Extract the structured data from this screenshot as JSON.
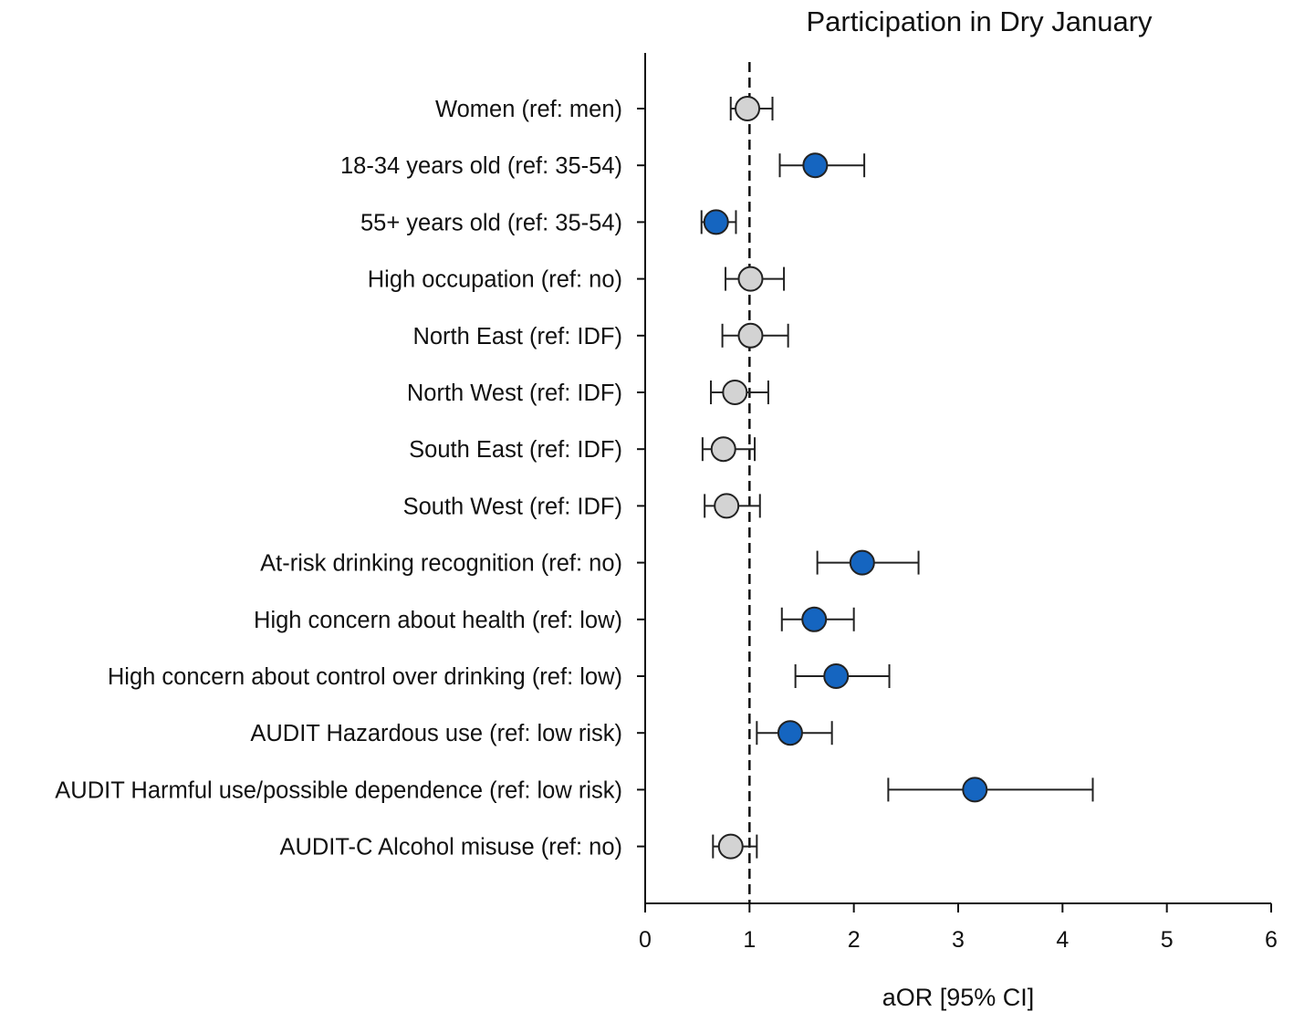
{
  "chart_data": {
    "type": "forest",
    "title": "Participation in Dry January",
    "xlabel": "aOR [95% CI]",
    "ylabel": "",
    "xlim": [
      0,
      6
    ],
    "x_ticks": [
      0,
      1,
      2,
      3,
      4,
      5,
      6
    ],
    "reference_line": 1,
    "colors": {
      "significant": "#1565c0",
      "not_significant": "#d3d3d3",
      "stroke": "#222222"
    },
    "rows": [
      {
        "label": "Women (ref: men)",
        "estimate": 0.98,
        "ci_low": 0.82,
        "ci_high": 1.22,
        "significant": false
      },
      {
        "label": "18-34 years old (ref: 35-54)",
        "estimate": 1.63,
        "ci_low": 1.29,
        "ci_high": 2.1,
        "significant": true
      },
      {
        "label": "55+ years old (ref: 35-54)",
        "estimate": 0.68,
        "ci_low": 0.54,
        "ci_high": 0.87,
        "significant": true
      },
      {
        "label": "High occupation (ref: no)",
        "estimate": 1.01,
        "ci_low": 0.77,
        "ci_high": 1.33,
        "significant": false
      },
      {
        "label": "North East (ref: IDF)",
        "estimate": 1.01,
        "ci_low": 0.74,
        "ci_high": 1.37,
        "significant": false
      },
      {
        "label": "North West (ref: IDF)",
        "estimate": 0.86,
        "ci_low": 0.63,
        "ci_high": 1.18,
        "significant": false
      },
      {
        "label": "South East (ref: IDF)",
        "estimate": 0.75,
        "ci_low": 0.55,
        "ci_high": 1.05,
        "significant": false
      },
      {
        "label": "South West (ref: IDF)",
        "estimate": 0.78,
        "ci_low": 0.57,
        "ci_high": 1.1,
        "significant": false
      },
      {
        "label": "At-risk drinking recognition (ref: no)",
        "estimate": 2.08,
        "ci_low": 1.65,
        "ci_high": 2.62,
        "significant": true
      },
      {
        "label": "High concern about health (ref: low)",
        "estimate": 1.62,
        "ci_low": 1.31,
        "ci_high": 2.0,
        "significant": true
      },
      {
        "label": "High concern about control over drinking (ref: low)",
        "estimate": 1.83,
        "ci_low": 1.44,
        "ci_high": 2.34,
        "significant": true
      },
      {
        "label": "AUDIT Hazardous use (ref: low risk)",
        "estimate": 1.39,
        "ci_low": 1.07,
        "ci_high": 1.79,
        "significant": true
      },
      {
        "label": "AUDIT Harmful use/possible dependence (ref: low risk)",
        "estimate": 3.16,
        "ci_low": 2.33,
        "ci_high": 4.29,
        "significant": true
      },
      {
        "label": "AUDIT-C Alcohol misuse (ref: no)",
        "estimate": 0.82,
        "ci_low": 0.65,
        "ci_high": 1.07,
        "significant": false
      }
    ]
  }
}
